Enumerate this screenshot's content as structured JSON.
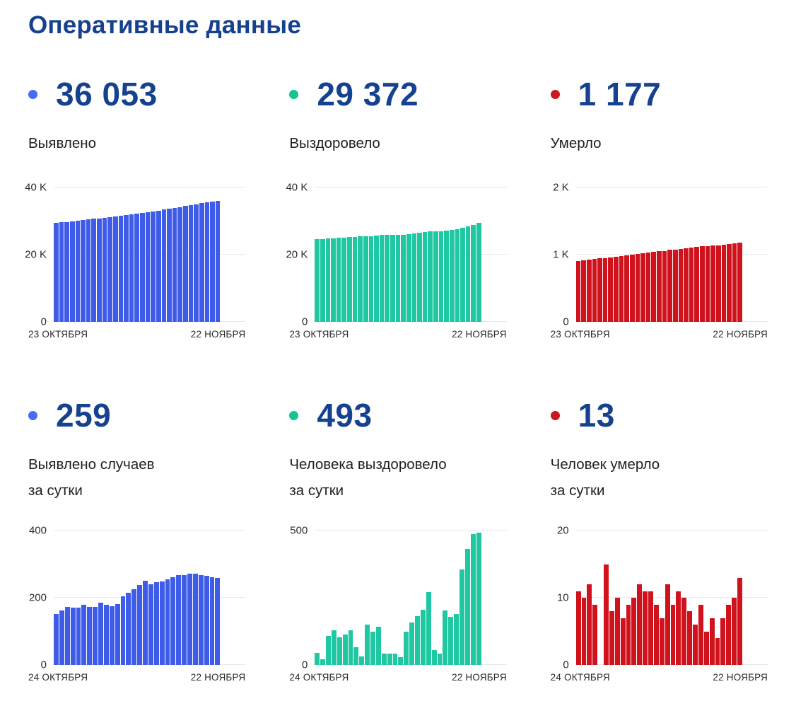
{
  "page": {
    "title": "Оперативные данные"
  },
  "colors": {
    "title": "#15418f",
    "headline": "#15418f",
    "text": "#1f1f1f",
    "axis": "#2b2b2b",
    "grid": "#e8e8e8",
    "background": "#ffffff",
    "blue": "#3f5ce8",
    "teal": "#1fc7a2",
    "red": "#d0121d"
  },
  "cards": [
    {
      "value": "36 053",
      "label_lines": [
        "Выявлено"
      ],
      "dot_color": "#4a6cf0"
    },
    {
      "value": "29 372",
      "label_lines": [
        "Выздоровело"
      ],
      "dot_color": "#14c493"
    },
    {
      "value": "1 177",
      "label_lines": [
        "Умерло"
      ],
      "dot_color": "#cb181f"
    },
    {
      "value": "259",
      "label_lines": [
        "Выявлено случаев",
        "за сутки"
      ],
      "dot_color": "#4a6cf0"
    },
    {
      "value": "493",
      "label_lines": [
        "Человека выздоровело",
        "за сутки"
      ],
      "dot_color": "#14c493"
    },
    {
      "value": "13",
      "label_lines": [
        "Человек умерло",
        "за сутки"
      ],
      "dot_color": "#cb181f"
    }
  ],
  "chart_data": [
    {
      "type": "bar",
      "title": "Выявлено (всего)",
      "color": "#3f5ce8",
      "ylim": [
        0,
        40000
      ],
      "y_ticks": [
        {
          "value": 40000,
          "label": "40 K"
        },
        {
          "value": 20000,
          "label": "20 K"
        },
        {
          "value": 0,
          "label": "0"
        }
      ],
      "x_start_label": "23 ОКТЯБРЯ",
      "x_end_label": "22 НОЯБРЯ",
      "grid": true,
      "values": [
        29471,
        29623,
        29786,
        29959,
        30129,
        30300,
        30479,
        30651,
        30824,
        31009,
        31187,
        31361,
        31542,
        31746,
        31961,
        32187,
        32424,
        32674,
        32913,
        33159,
        33407,
        33661,
        33922,
        34190,
        34457,
        34729,
        35000,
        35267,
        35532,
        35794,
        36053
      ]
    },
    {
      "type": "bar",
      "title": "Выздоровело (всего)",
      "color": "#1fc7a2",
      "ylim": [
        0,
        40000
      ],
      "y_ticks": [
        {
          "value": 40000,
          "label": "40 K"
        },
        {
          "value": 20000,
          "label": "20 K"
        },
        {
          "value": 0,
          "label": "0"
        }
      ],
      "x_start_label": "23 ОКТЯБРЯ",
      "x_end_label": "22 НОЯБРЯ",
      "grid": true,
      "values": [
        24683,
        24728,
        24748,
        24856,
        24985,
        25088,
        25202,
        25332,
        25398,
        25430,
        25579,
        25702,
        25844,
        25886,
        25928,
        25970,
        25998,
        26123,
        26281,
        26463,
        26669,
        26941,
        26995,
        27036,
        27238,
        27416,
        27605,
        27960,
        28392,
        28879,
        29372
      ]
    },
    {
      "type": "bar",
      "title": "Умерло (всего)",
      "color": "#d0121d",
      "ylim": [
        0,
        2000
      ],
      "y_ticks": [
        {
          "value": 2000,
          "label": "2 K"
        },
        {
          "value": 1000,
          "label": "1 K"
        },
        {
          "value": 0,
          "label": "0"
        }
      ],
      "x_start_label": "23 ОКТЯБРЯ",
      "x_end_label": "22 НОЯБРЯ",
      "grid": true,
      "values": [
        906,
        917,
        927,
        939,
        948,
        948,
        963,
        971,
        981,
        988,
        997,
        1007,
        1019,
        1030,
        1041,
        1050,
        1057,
        1069,
        1078,
        1089,
        1099,
        1107,
        1113,
        1122,
        1127,
        1134,
        1138,
        1145,
        1154,
        1164,
        1177
      ]
    },
    {
      "type": "bar",
      "title": "Выявлено случаев за сутки",
      "color": "#3f5ce8",
      "ylim": [
        0,
        400
      ],
      "y_ticks": [
        {
          "value": 400,
          "label": "400"
        },
        {
          "value": 200,
          "label": "200"
        },
        {
          "value": 0,
          "label": "0"
        }
      ],
      "x_start_label": "24 ОКТЯБРЯ",
      "x_end_label": "22 НОЯБРЯ",
      "grid": true,
      "values": [
        152,
        163,
        173,
        170,
        171,
        179,
        172,
        173,
        185,
        178,
        174,
        181,
        204,
        215,
        226,
        237,
        250,
        239,
        246,
        248,
        254,
        261,
        268,
        267,
        272,
        271,
        267,
        265,
        262,
        259
      ]
    },
    {
      "type": "bar",
      "title": "Человека выздоровело за сутки",
      "color": "#1fc7a2",
      "ylim": [
        0,
        500
      ],
      "y_ticks": [
        {
          "value": 500,
          "label": "500"
        },
        {
          "value": 0,
          "label": "0"
        }
      ],
      "x_start_label": "24 ОКТЯБРЯ",
      "x_end_label": "22 НОЯБРЯ",
      "grid": true,
      "values": [
        45,
        20,
        108,
        129,
        103,
        114,
        130,
        66,
        32,
        149,
        123,
        142,
        42,
        42,
        42,
        28,
        125,
        158,
        182,
        206,
        272,
        54,
        41,
        202,
        178,
        189,
        355,
        432,
        487,
        493
      ]
    },
    {
      "type": "bar",
      "title": "Человек умерло за сутки",
      "color": "#d0121d",
      "ylim": [
        0,
        20
      ],
      "y_ticks": [
        {
          "value": 20,
          "label": "20"
        },
        {
          "value": 10,
          "label": "10"
        },
        {
          "value": 0,
          "label": "0"
        }
      ],
      "x_start_label": "24 ОКТЯБРЯ",
      "x_end_label": "22 НОЯБРЯ",
      "grid": true,
      "values": [
        11,
        10,
        12,
        9,
        0,
        15,
        8,
        10,
        7,
        9,
        10,
        12,
        11,
        11,
        9,
        7,
        12,
        9,
        11,
        10,
        8,
        6,
        9,
        5,
        7,
        4,
        7,
        9,
        10,
        13
      ]
    }
  ]
}
